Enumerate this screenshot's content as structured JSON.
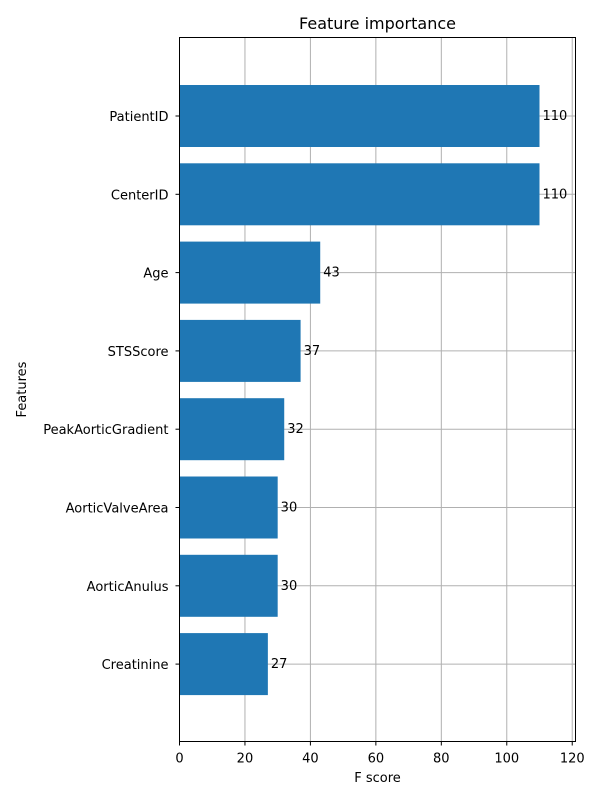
{
  "chart_data": {
    "type": "bar",
    "orientation": "horizontal",
    "title": "Feature importance",
    "xlabel": "F score",
    "ylabel": "Features",
    "categories": [
      "PatientID",
      "CenterID",
      "Age",
      "STSScore",
      "PeakAorticGradient",
      "AorticValveArea",
      "AorticAnulus",
      "Creatinine"
    ],
    "values": [
      110,
      110,
      43,
      37,
      32,
      30,
      30,
      27
    ],
    "value_labels": [
      "110",
      "110",
      "43",
      "37",
      "32",
      "30",
      "30",
      "27"
    ],
    "xlim": [
      0,
      121
    ],
    "xticks": [
      0,
      20,
      40,
      60,
      80,
      100,
      120
    ],
    "xtick_labels": [
      "0",
      "20",
      "40",
      "60",
      "80",
      "100",
      "120"
    ],
    "grid": true,
    "bar_color": "#1f77b4",
    "grid_color": "#b0b0b0"
  }
}
